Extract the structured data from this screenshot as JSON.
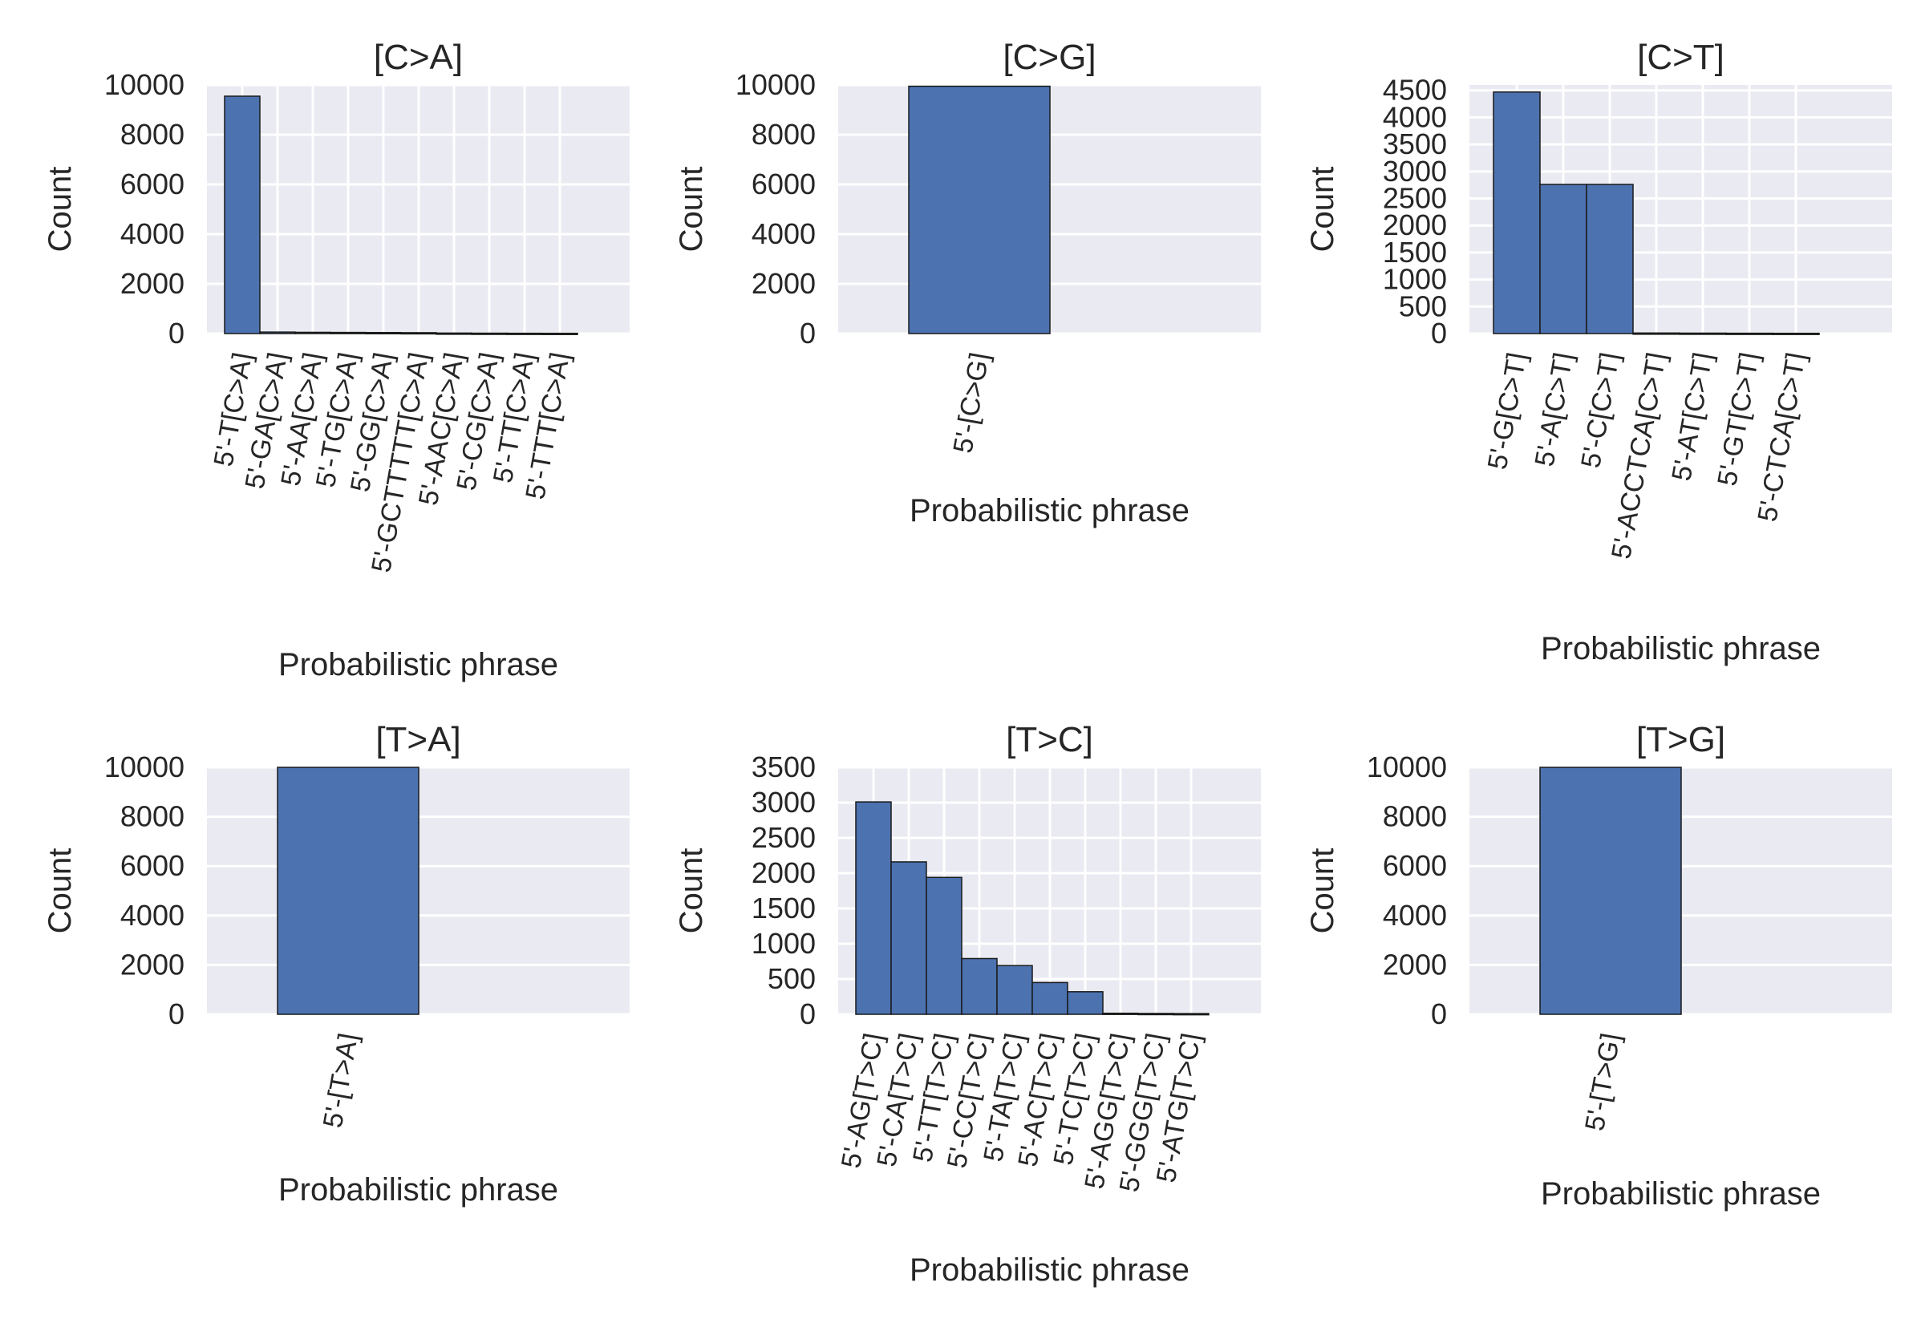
{
  "chart_data": [
    {
      "type": "bar",
      "title": "[C>A]",
      "xlabel": "Probabilistic phrase",
      "ylabel": "Count",
      "ylim": [
        0,
        10000
      ],
      "yticks": [
        "0",
        "2000",
        "4000",
        "6000",
        "8000",
        "10000"
      ],
      "categories": [
        "5'-T[C>A]",
        "5'-GA[C>A]",
        "5'-AA[C>A]",
        "5'-TG[C>A]",
        "5'-GG[C>A]",
        "5'-GCTTTTT[C>A]",
        "5'-AAC[C>A]",
        "5'-CG[C>A]",
        "5'-TT[C>A]",
        "5'-TTT[C>A]"
      ],
      "values": [
        9550,
        60,
        50,
        45,
        40,
        35,
        20,
        15,
        12,
        10
      ],
      "grid": true
    },
    {
      "type": "bar",
      "title": "[C>G]",
      "xlabel": "Probabilistic phrase",
      "ylabel": "Count",
      "ylim": [
        0,
        10000
      ],
      "yticks": [
        "0",
        "2000",
        "4000",
        "6000",
        "8000",
        "10000"
      ],
      "categories": [
        "5'-[C>G]"
      ],
      "values": [
        9950
      ],
      "grid": true
    },
    {
      "type": "bar",
      "title": "[C>T]",
      "xlabel": "Probabilistic phrase",
      "ylabel": "Count",
      "ylim": [
        0,
        4600
      ],
      "yticks": [
        "0",
        "500",
        "1000",
        "1500",
        "2000",
        "2500",
        "3000",
        "3500",
        "4000",
        "4500"
      ],
      "categories": [
        "5'-G[C>T]",
        "5'-A[C>T]",
        "5'-C[C>T]",
        "5'-ACCTCA[C>T]",
        "5'-AT[C>T]",
        "5'-GT[C>T]",
        "5'-CTCA[C>T]"
      ],
      "values": [
        4470,
        2760,
        2760,
        10,
        8,
        6,
        5
      ],
      "grid": true
    },
    {
      "type": "bar",
      "title": "[T>A]",
      "xlabel": "Probabilistic phrase",
      "ylabel": "Count",
      "ylim": [
        0,
        10000
      ],
      "yticks": [
        "0",
        "2000",
        "4000",
        "6000",
        "8000",
        "10000"
      ],
      "categories": [
        "5'-[T>A]"
      ],
      "values": [
        10000
      ],
      "grid": true
    },
    {
      "type": "bar",
      "title": "[T>C]",
      "xlabel": "Probabilistic phrase",
      "ylabel": "Count",
      "ylim": [
        0,
        3500
      ],
      "yticks": [
        "0",
        "500",
        "1000",
        "1500",
        "2000",
        "2500",
        "3000",
        "3500"
      ],
      "categories": [
        "5'-AG[T>C]",
        "5'-CA[T>C]",
        "5'-TT[T>C]",
        "5'-CC[T>C]",
        "5'-TA[T>C]",
        "5'-AC[T>C]",
        "5'-TC[T>C]",
        "5'-AGG[T>C]",
        "5'-GGG[T>C]",
        "5'-ATG[T>C]"
      ],
      "values": [
        3010,
        2160,
        1940,
        790,
        690,
        450,
        320,
        15,
        12,
        10
      ],
      "grid": true
    },
    {
      "type": "bar",
      "title": "[T>G]",
      "xlabel": "Probabilistic phrase",
      "ylabel": "Count",
      "ylim": [
        0,
        10000
      ],
      "yticks": [
        "0",
        "2000",
        "4000",
        "6000",
        "8000",
        "10000"
      ],
      "categories": [
        "5'-[T>G]"
      ],
      "values": [
        10000
      ],
      "grid": true
    }
  ]
}
